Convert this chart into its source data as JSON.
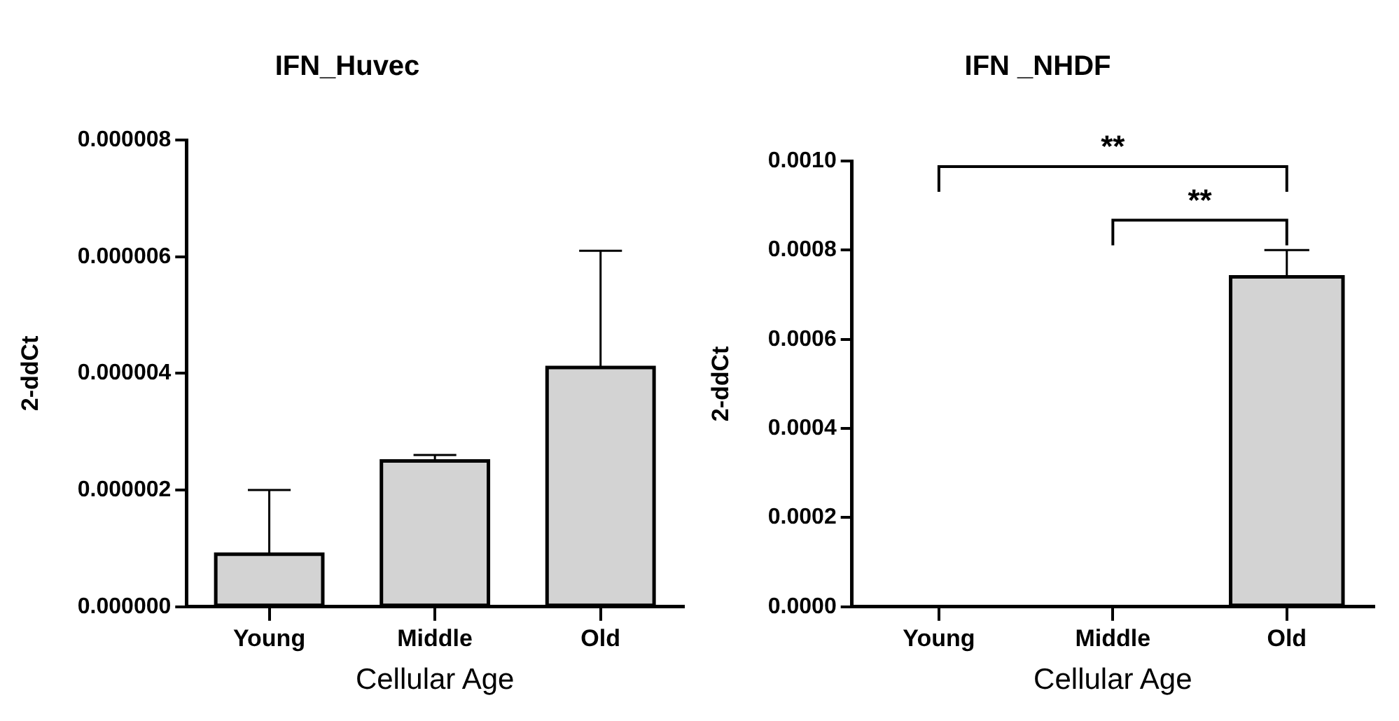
{
  "chart_data": [
    {
      "type": "bar",
      "title": "IFN_Huvec",
      "xlabel": "Cellular Age",
      "ylabel": "2-ddCt",
      "categories": [
        "Young",
        "Middle",
        "Old"
      ],
      "values": [
        9e-07,
        2.5e-06,
        4.1e-06
      ],
      "errors": [
        [
          9e-07,
          2e-06
        ],
        [
          2.5e-06,
          2.6e-06
        ],
        [
          4.1e-06,
          6.1e-06
        ]
      ],
      "color": "#d3d3d3",
      "ylim": [
        0,
        8e-06
      ],
      "yticks": [
        {
          "value": 0,
          "label": "0.000000"
        },
        {
          "value": 2e-06,
          "label": "0.000002"
        },
        {
          "value": 4e-06,
          "label": "0.000004"
        },
        {
          "value": 6e-06,
          "label": "0.000006"
        },
        {
          "value": 8e-06,
          "label": "0.000008"
        }
      ],
      "grid": false,
      "legend": false
    },
    {
      "type": "bar",
      "title": "IFN _NHDF",
      "xlabel": "Cellular Age",
      "ylabel": "2-ddCt",
      "categories": [
        "Young",
        "Middle",
        "Old"
      ],
      "values": [
        0,
        0,
        0.00074
      ],
      "errors": [
        null,
        null,
        [
          0.00074,
          0.0008
        ]
      ],
      "color": "#d3d3d3",
      "ylim": [
        0,
        0.001
      ],
      "yticks": [
        {
          "value": 0,
          "label": "0.0000"
        },
        0.0002,
        0.0004,
        0.0006,
        0.0008,
        {
          "value": 0.001,
          "label": "0.0010"
        }
      ],
      "annotations": [
        "**",
        "**"
      ],
      "grid": false,
      "legend": false
    }
  ]
}
